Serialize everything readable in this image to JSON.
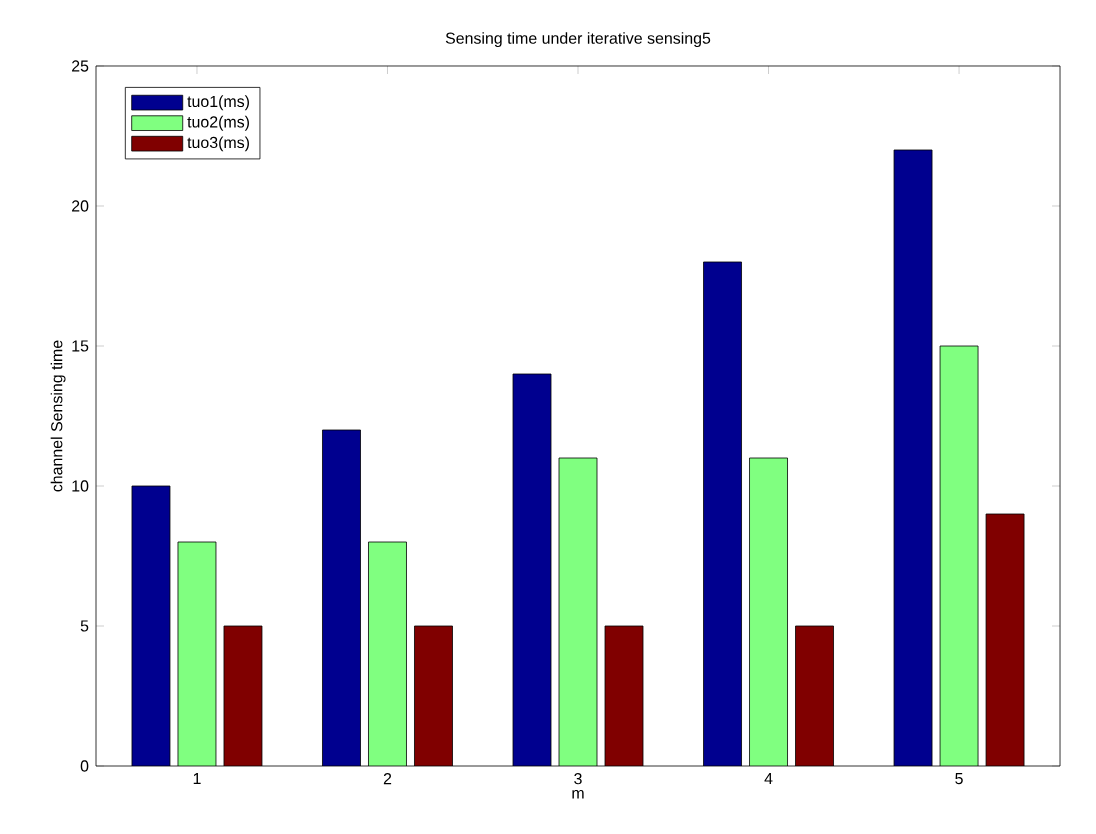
{
  "chart_data": {
    "type": "bar",
    "title": "Sensing time under iterative sensing5",
    "xlabel": "m",
    "ylabel": "channel Sensing time",
    "categories": [
      "1",
      "2",
      "3",
      "4",
      "5"
    ],
    "series": [
      {
        "name": "tuo1(ms)",
        "color": "#00008f",
        "values": [
          10,
          12,
          14,
          18,
          22
        ]
      },
      {
        "name": "tuo2(ms)",
        "color": "#80ff80",
        "values": [
          8,
          8,
          11,
          11,
          15
        ]
      },
      {
        "name": "tuo3(ms)",
        "color": "#800000",
        "values": [
          5,
          5,
          5,
          5,
          9
        ]
      }
    ],
    "ylim": [
      0,
      25
    ],
    "yticks": [
      0,
      5,
      10,
      15,
      20,
      25
    ],
    "legend": "top left"
  }
}
